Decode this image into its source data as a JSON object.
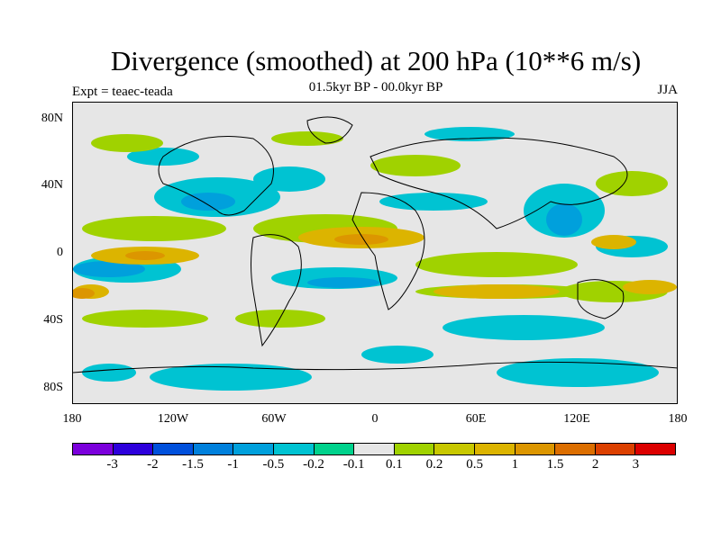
{
  "title": "Divergence (smoothed) at 200 hPa (10**6 m/s)",
  "subtitle": "01.5kyr BP - 00.0kyr BP",
  "experiment": "Expt = teaec-teada",
  "season": "JJA",
  "lat_labels": [
    "80N",
    "40N",
    "0",
    "40S",
    "80S"
  ],
  "lon_labels": [
    "180",
    "120W",
    "60W",
    "0",
    "60E",
    "120E",
    "180"
  ],
  "legend": {
    "colors": [
      "#7b00dc",
      "#2d00dc",
      "#0050dc",
      "#0080dc",
      "#00a0dc",
      "#00c3d2",
      "#00d28c",
      "#e6e6e6",
      "#a0d200",
      "#c8c800",
      "#dcb400",
      "#dc9600",
      "#dc6e00",
      "#dc4000",
      "#dc0000"
    ],
    "labels": [
      "-3",
      "-2",
      "-1.5",
      "-1",
      "-0.5",
      "-0.2",
      "-0.1",
      "0.1",
      "0.2",
      "0.5",
      "1",
      "1.5",
      "2",
      "3"
    ]
  }
}
